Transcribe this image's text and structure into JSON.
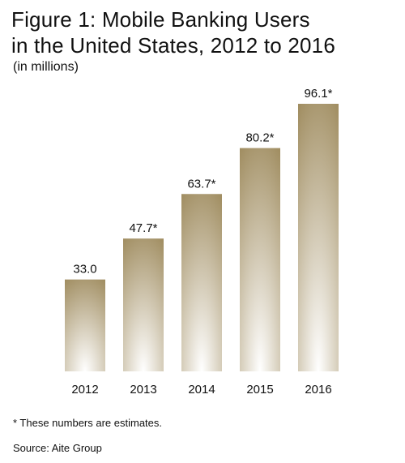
{
  "title_line1": "Figure 1: Mobile Banking Users",
  "title_line2": "in the United States, 2012 to 2016",
  "subtitle": "(in millions)",
  "footnote": "* These numbers are estimates.",
  "source": "Source: Aite Group",
  "colors": {
    "bar_dark": "#a18e62",
    "bar_light": "#ffffff"
  },
  "chart_data": {
    "type": "bar",
    "title": "Figure 1: Mobile Banking Users in the United States, 2012 to 2016",
    "subtitle": "(in millions)",
    "categories": [
      "2012",
      "2013",
      "2014",
      "2015",
      "2016"
    ],
    "values": [
      33.0,
      47.7,
      63.7,
      80.2,
      96.1
    ],
    "value_labels": [
      "33.0",
      "47.7*",
      "63.7*",
      "80.2*",
      "96.1*"
    ],
    "xlabel": "",
    "ylabel": "",
    "ylim": [
      0,
      96.1
    ],
    "grid": false,
    "legend": "none"
  }
}
